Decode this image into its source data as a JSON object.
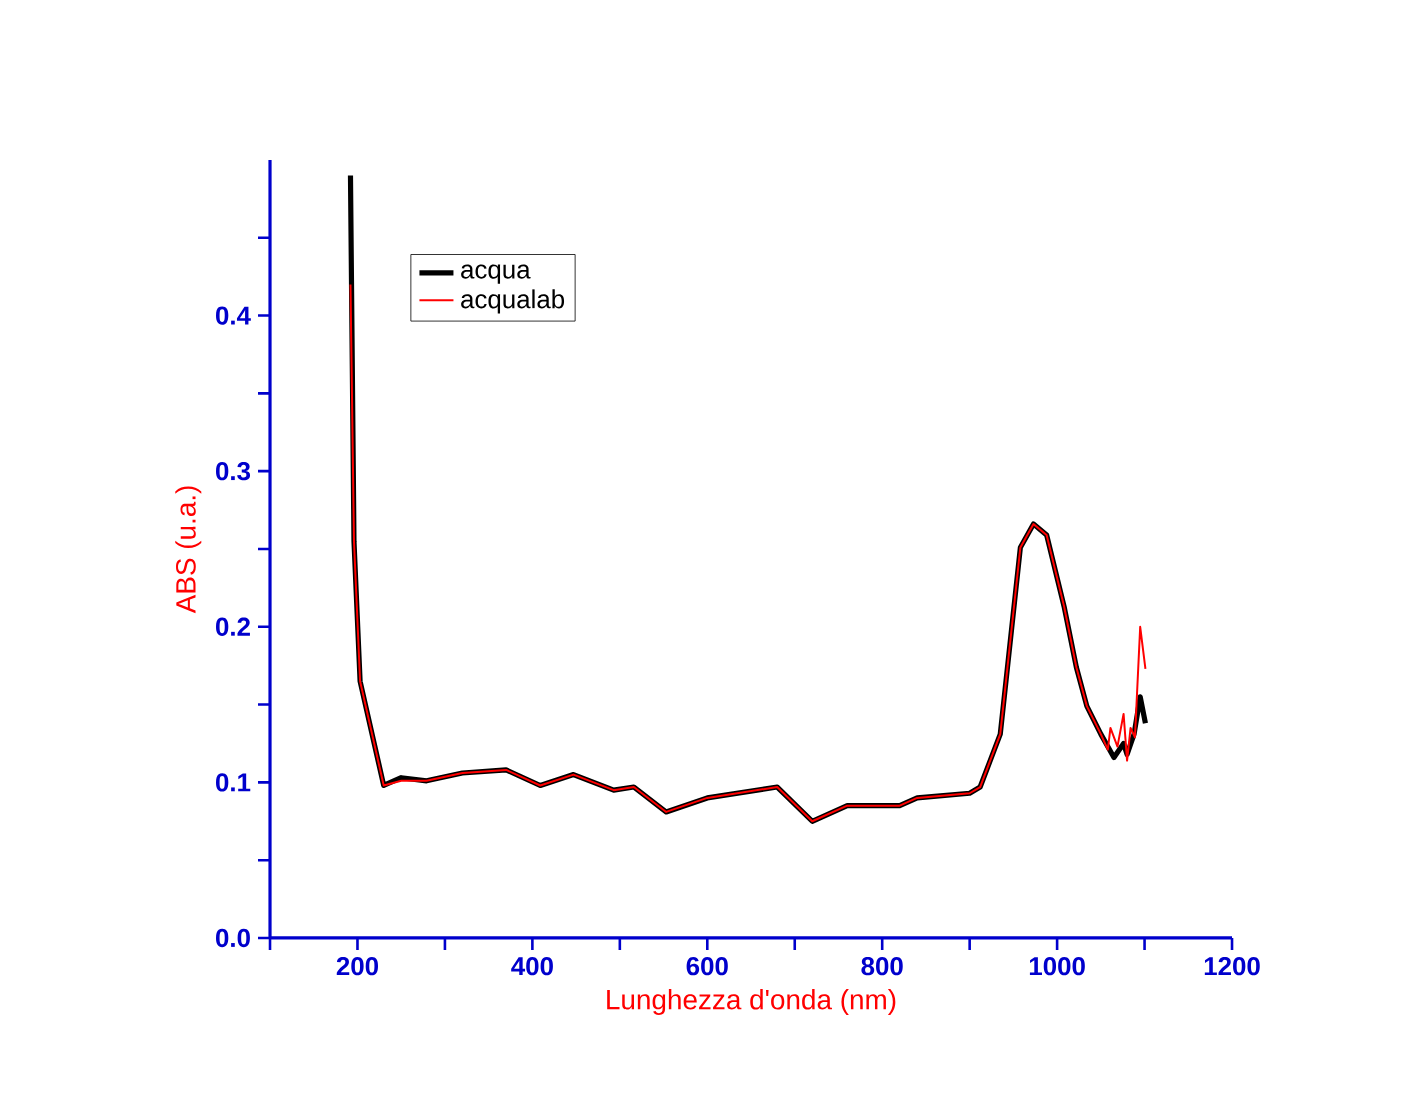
{
  "chart_data": {
    "type": "line",
    "xlabel": "Lunghezza d'onda (nm)",
    "ylabel": "ABS (u.a.)",
    "xlim": [
      100,
      1200
    ],
    "ylim": [
      0,
      0.5
    ],
    "xticks": [
      {
        "value": 100,
        "label": null
      },
      200,
      {
        "value": 300,
        "label": null
      },
      400,
      {
        "value": 500,
        "label": null
      },
      600,
      {
        "value": 700,
        "label": null
      },
      800,
      {
        "value": 900,
        "label": null
      },
      1000,
      {
        "value": 1100,
        "label": null
      },
      1200
    ],
    "yticks": [
      {
        "value": 0,
        "label": "0.0"
      },
      {
        "value": 0.05,
        "label": null
      },
      {
        "value": 0.1,
        "label": "0.1"
      },
      {
        "value": 0.15,
        "label": null
      },
      {
        "value": 0.2,
        "label": "0.2"
      },
      {
        "value": 0.25,
        "label": null
      },
      {
        "value": 0.3,
        "label": "0.3"
      },
      {
        "value": 0.35,
        "label": null
      },
      {
        "value": 0.4,
        "label": "0.4"
      },
      {
        "value": 0.45,
        "label": null
      }
    ],
    "grid": false,
    "legend": "top left",
    "marker": "none",
    "line_style": "solid",
    "series": [
      {
        "name": "acqua",
        "color": "#000000",
        "x": [
          192,
          196,
          203,
          230,
          250,
          279,
          320,
          370,
          409,
          447,
          493,
          516,
          553,
          600,
          680,
          720,
          760,
          820,
          840,
          900,
          912,
          935,
          958,
          973,
          988,
          1008,
          1022,
          1034,
          1050,
          1065,
          1076,
          1080,
          1088,
          1095,
          1101
        ],
        "values": [
          0.49,
          0.255,
          0.165,
          0.098,
          0.103,
          0.101,
          0.106,
          0.108,
          0.098,
          0.105,
          0.095,
          0.097,
          0.081,
          0.09,
          0.097,
          0.075,
          0.085,
          0.085,
          0.09,
          0.093,
          0.097,
          0.131,
          0.251,
          0.266,
          0.259,
          0.213,
          0.174,
          0.149,
          0.131,
          0.116,
          0.125,
          0.118,
          0.131,
          0.155,
          0.138
        ]
      },
      {
        "name": "acqualab",
        "color": "#ff0000",
        "x": [
          192,
          196,
          203,
          230,
          250,
          279,
          320,
          370,
          409,
          447,
          493,
          516,
          553,
          600,
          680,
          720,
          760,
          820,
          840,
          900,
          912,
          935,
          958,
          973,
          988,
          1008,
          1022,
          1034,
          1050,
          1058,
          1061,
          1069,
          1076,
          1080,
          1084,
          1089,
          1095,
          1101
        ],
        "values": [
          0.42,
          0.255,
          0.165,
          0.098,
          0.101,
          0.101,
          0.106,
          0.108,
          0.098,
          0.105,
          0.095,
          0.097,
          0.081,
          0.09,
          0.097,
          0.075,
          0.085,
          0.085,
          0.09,
          0.093,
          0.097,
          0.131,
          0.251,
          0.266,
          0.259,
          0.213,
          0.174,
          0.149,
          0.131,
          0.121,
          0.135,
          0.123,
          0.144,
          0.114,
          0.135,
          0.129,
          0.2,
          0.173
        ]
      }
    ]
  }
}
